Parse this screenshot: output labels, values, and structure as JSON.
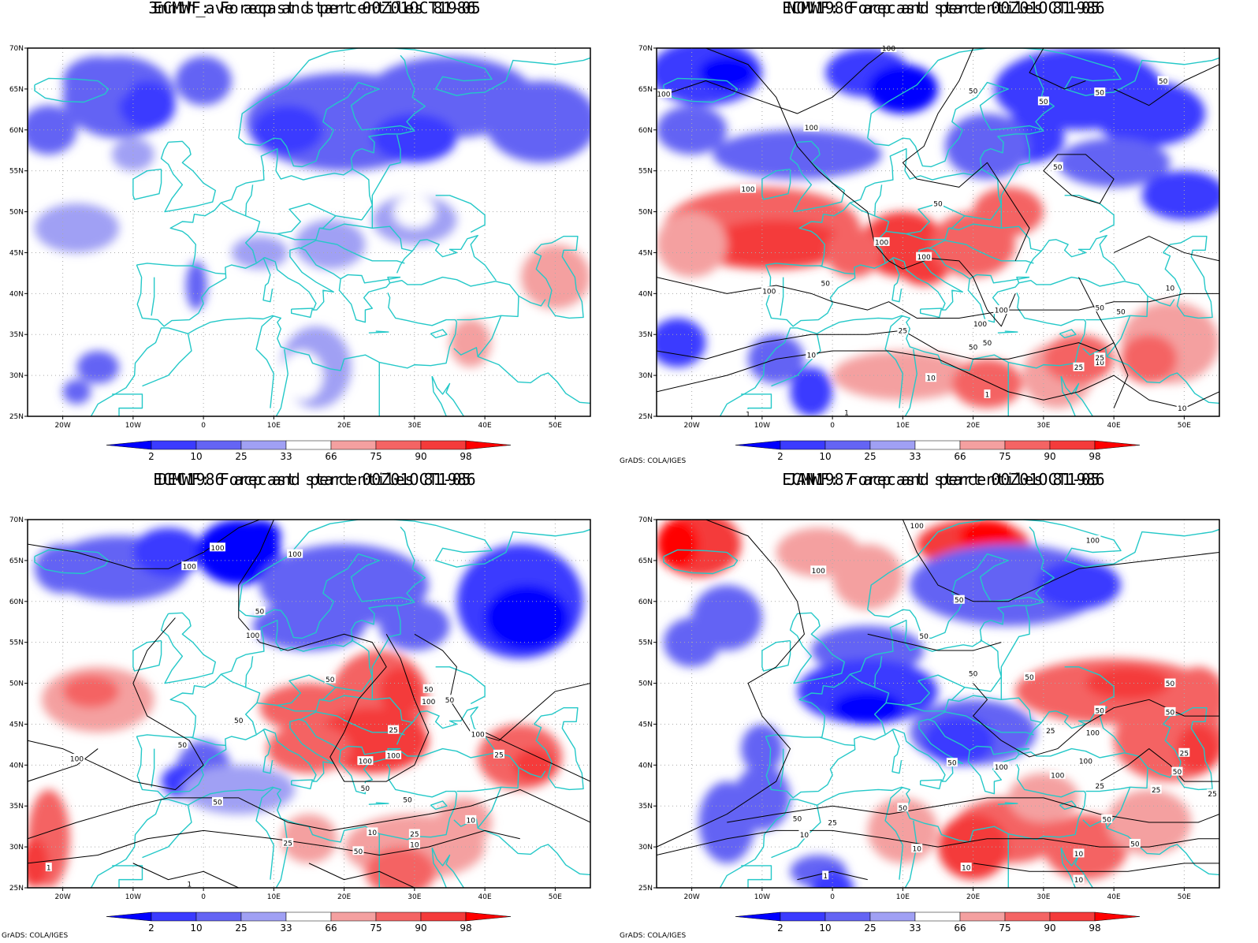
{
  "panels": [
    {
      "id": "p1",
      "title_line1": "3mnth_ave acp and percentiles 81-05",
      "title_line2": "ECMWF: Forecast start 00Z01OCT1986",
      "credit": "",
      "contour_labels": []
    },
    {
      "id": "p2",
      "title_line1": "NOV1986 acp and percentiles 81-05",
      "title_line2": "ECMWF: Forecast start 00Z01OCT1986",
      "credit": "GrADS: COLA/IGES",
      "contour_labels": [
        "100",
        "100",
        "100",
        "50",
        "50",
        "50",
        "50",
        "100",
        "100",
        "50",
        "50",
        "100",
        "100",
        "50",
        "100",
        "50",
        "50",
        "100",
        "25",
        "50",
        "10",
        "10",
        "25",
        "10",
        "1",
        "1",
        "1",
        "10",
        "25",
        "50",
        "10"
      ]
    },
    {
      "id": "p3",
      "title_line1": "DEC1986 acp and percentiles 81-05",
      "title_line2": "ECMWF: Forecast start 00Z01OCT1986",
      "credit": "GrADS: COLA/IGES",
      "contour_labels": [
        "100",
        "100",
        "100",
        "50",
        "100",
        "50",
        "50",
        "100",
        "50",
        "100",
        "100",
        "100",
        "50",
        "25",
        "50",
        "50",
        "100",
        "25",
        "50",
        "25",
        "10",
        "25",
        "50",
        "10",
        "1",
        "1",
        "50",
        "10"
      ]
    },
    {
      "id": "p4",
      "title_line1": "JAN1987 acp and percentiles 81-05",
      "title_line2": "ECMWF: Forecast start 00Z01OCT1986",
      "credit": "GrADS: COLA/IGES",
      "contour_labels": [
        "100",
        "100",
        "50",
        "100",
        "50",
        "50",
        "50",
        "50",
        "25",
        "50",
        "100",
        "50",
        "50",
        "100",
        "25",
        "100",
        "100",
        "50",
        "25",
        "50",
        "25",
        "10",
        "50",
        "25",
        "10",
        "1",
        "10",
        "10",
        "50",
        "25",
        "10",
        "50"
      ]
    }
  ],
  "axes": {
    "lat_labels": [
      "70N",
      "65N",
      "60N",
      "55N",
      "50N",
      "45N",
      "40N",
      "35N",
      "30N",
      "25N"
    ],
    "lon_labels": [
      "20W",
      "10W",
      "0",
      "10E",
      "20E",
      "30E",
      "40E",
      "50E"
    ]
  },
  "colorbar": {
    "labels": [
      "2",
      "10",
      "25",
      "33",
      "66",
      "75",
      "90",
      "98"
    ],
    "colors": [
      "#0000ff",
      "#3b3bff",
      "#6464f4",
      "#a0a0f4",
      "#ffffff",
      "#f4a0a0",
      "#f46464",
      "#f43b3b",
      "#ff0000"
    ]
  },
  "colors": {
    "coast": "#24c8c8",
    "contour": "#000000"
  }
}
